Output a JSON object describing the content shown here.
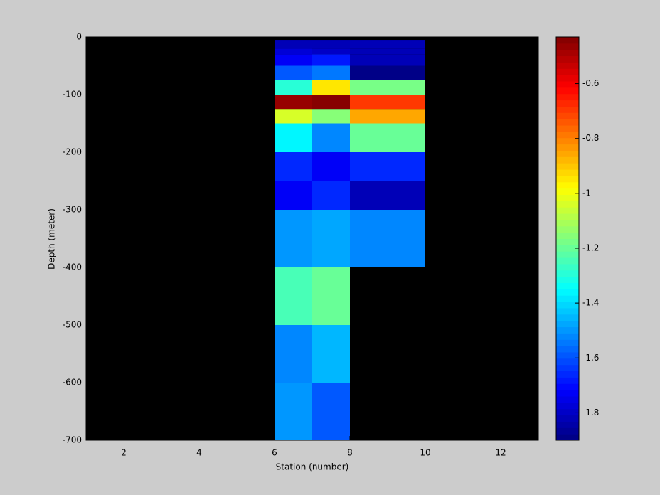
{
  "chart_data": {
    "type": "heatmap",
    "xlabel": "Station (number)",
    "ylabel": "Depth (meter)",
    "xlim": [
      1,
      13
    ],
    "xticks": [
      2,
      4,
      6,
      8,
      10,
      12
    ],
    "ylim": [
      -700,
      0
    ],
    "yticks": [
      0,
      -100,
      -200,
      -300,
      -400,
      -500,
      -600,
      -700
    ],
    "x_edges": [
      6,
      7,
      8,
      10
    ],
    "y_edges": [
      -5,
      -20,
      -30,
      -50,
      -75,
      -100,
      -125,
      -150,
      -200,
      -250,
      -300,
      -400,
      -500,
      -600,
      -700
    ],
    "values": [
      [
        -1.83,
        -1.82,
        -1.82
      ],
      [
        -1.78,
        -1.8,
        -1.82
      ],
      [
        -1.72,
        -1.68,
        -1.82
      ],
      [
        -1.58,
        -1.55,
        -1.9
      ],
      [
        -1.3,
        -0.95,
        -1.18
      ],
      [
        -0.47,
        -0.45,
        -0.7
      ],
      [
        -1.05,
        -1.15,
        -0.85
      ],
      [
        -1.36,
        -1.53,
        -1.2
      ],
      [
        -1.65,
        -1.72,
        -1.65
      ],
      [
        -1.72,
        -1.65,
        -1.82
      ],
      [
        -1.5,
        -1.47,
        -1.53
      ],
      [
        -1.25,
        -1.2,
        null
      ],
      [
        -1.53,
        -1.45,
        null
      ],
      [
        -1.5,
        -1.58,
        null
      ]
    ],
    "colormap": "jet",
    "colorbar": {
      "clim": [
        -1.9,
        -0.43
      ],
      "ticks": [
        -0.6,
        -0.8,
        -1,
        -1.2,
        -1.4,
        -1.6,
        -1.8
      ]
    }
  }
}
